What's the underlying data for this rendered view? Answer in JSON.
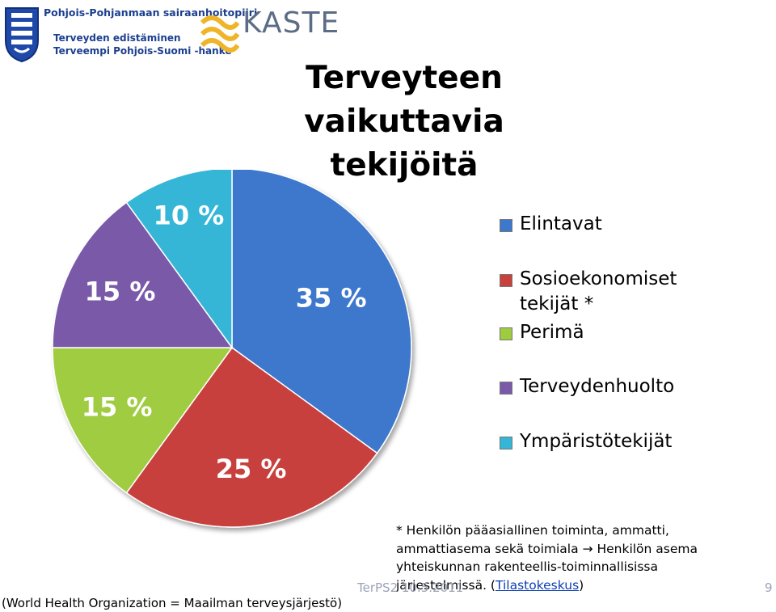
{
  "header": {
    "org_name": "Pohjois-Pohjanmaan sairaanhoitopiiri",
    "org_line2": "Terveyden edistäminen",
    "org_line3": "Terveempi Pohjois-Suomi -hanke",
    "partner_logo": "KASTE"
  },
  "title": {
    "line1": "Terveyteen",
    "line2": "vaikuttavia tekijöitä"
  },
  "chart_data": {
    "type": "pie",
    "title": "Terveyteen vaikuttavia tekijöitä",
    "categories": [
      "Elintavat",
      "Sosioekonomiset tekijät *",
      "Perimä",
      "Terveydenhuolto",
      "Ympäristötekijät"
    ],
    "values": [
      35,
      25,
      15,
      15,
      10
    ],
    "data_labels": [
      "35 %",
      "25 %",
      "15 %",
      "15 %",
      "10 %"
    ],
    "colors": [
      "#3d78cc",
      "#c8413d",
      "#9fcc3f",
      "#7a5aa8",
      "#35b6d6"
    ],
    "start_angle_deg": 0,
    "direction": "clockwise",
    "legend_position": "right"
  },
  "legend": {
    "items": [
      {
        "label": "Elintavat",
        "color": "#3d78cc"
      },
      {
        "label_line1": "Sosioekonomiset",
        "label_line2": "tekijät *",
        "color": "#c8413d"
      },
      {
        "label": "Perimä",
        "color": "#9fcc3f"
      },
      {
        "label": "Terveydenhuolto",
        "color": "#7a5aa8"
      },
      {
        "label": "Ympäristötekijät",
        "color": "#35b6d6"
      }
    ]
  },
  "footnote": {
    "text": "* Henkilön pääasiallinen toiminta, ammatti, ammattiasema sekä toimiala → Henkilön asema yhteiskunnan rakenteellis-toiminnallisissa järjestelmissä. (",
    "link": "Tilastokeskus",
    "close": ")"
  },
  "footer": {
    "source": "(World Health Organization = Maailman terveysjärjestö)",
    "slide_code": "TerPS2 10.5.2011",
    "page_number": "9"
  }
}
